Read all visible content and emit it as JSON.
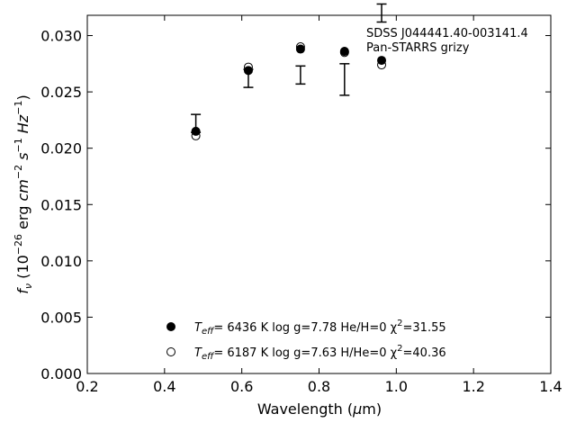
{
  "chart_data": {
    "type": "scatter",
    "annotations": [
      "SDSS J044441.40-003141.4",
      "Pan-STARRS grizy"
    ],
    "xlim": [
      0.2,
      1.4
    ],
    "ylim": [
      0.0,
      0.0318
    ],
    "xticks": [
      0.2,
      0.4,
      0.6,
      0.8,
      1.0,
      1.2,
      1.4
    ],
    "xtick_labels": [
      "0.2",
      "0.4",
      "0.6",
      "0.8",
      "1.0",
      "1.2",
      "1.4"
    ],
    "yticks": [
      0.0,
      0.005,
      0.01,
      0.015,
      0.02,
      0.025,
      0.03
    ],
    "ytick_labels": [
      "0.000",
      "0.005",
      "0.010",
      "0.015",
      "0.020",
      "0.025",
      "0.030"
    ],
    "observed": {
      "x": [
        0.481,
        0.617,
        0.752,
        0.866,
        0.962
      ],
      "y": [
        0.0222,
        0.0262,
        0.0265,
        0.0261,
        0.032
      ],
      "yerr": [
        0.0008,
        0.0008,
        0.0008,
        0.0014,
        0.0008
      ]
    },
    "series": [
      {
        "marker": "filled-circle",
        "legend_parts": {
          "pre": "T",
          "sub": "eff",
          "mid": "=  6436 K  log g=7.78  He/H=0  χ",
          "sup": "2",
          "post": "=31.55"
        },
        "x": [
          0.481,
          0.617,
          0.752,
          0.866,
          0.962
        ],
        "y": [
          0.0215,
          0.0269,
          0.0288,
          0.0286,
          0.0278
        ]
      },
      {
        "marker": "open-circle",
        "legend_parts": {
          "pre": "T",
          "sub": "eff",
          "mid": "=  6187 K  log g=7.63  H/He=0  χ",
          "sup": "2",
          "post": "=40.36"
        },
        "x": [
          0.481,
          0.617,
          0.752,
          0.866,
          0.962
        ],
        "y": [
          0.0211,
          0.0272,
          0.029,
          0.0285,
          0.0274
        ]
      }
    ],
    "xlabel_parts": {
      "pre": "Wavelength (",
      "greek": "μ",
      "post": "m)"
    },
    "ylabel_parts": {
      "f": "f",
      "nu": "ν",
      "open": " (10",
      "exp26": "−26",
      "erg": " erg ",
      "cm": "cm",
      "exm2": "−2",
      "s": " s",
      "exm1a": "−1",
      "hz": " Hz",
      "exm1b": "−1",
      "close": ")"
    },
    "grid": false,
    "legend_position": "lower-center"
  }
}
